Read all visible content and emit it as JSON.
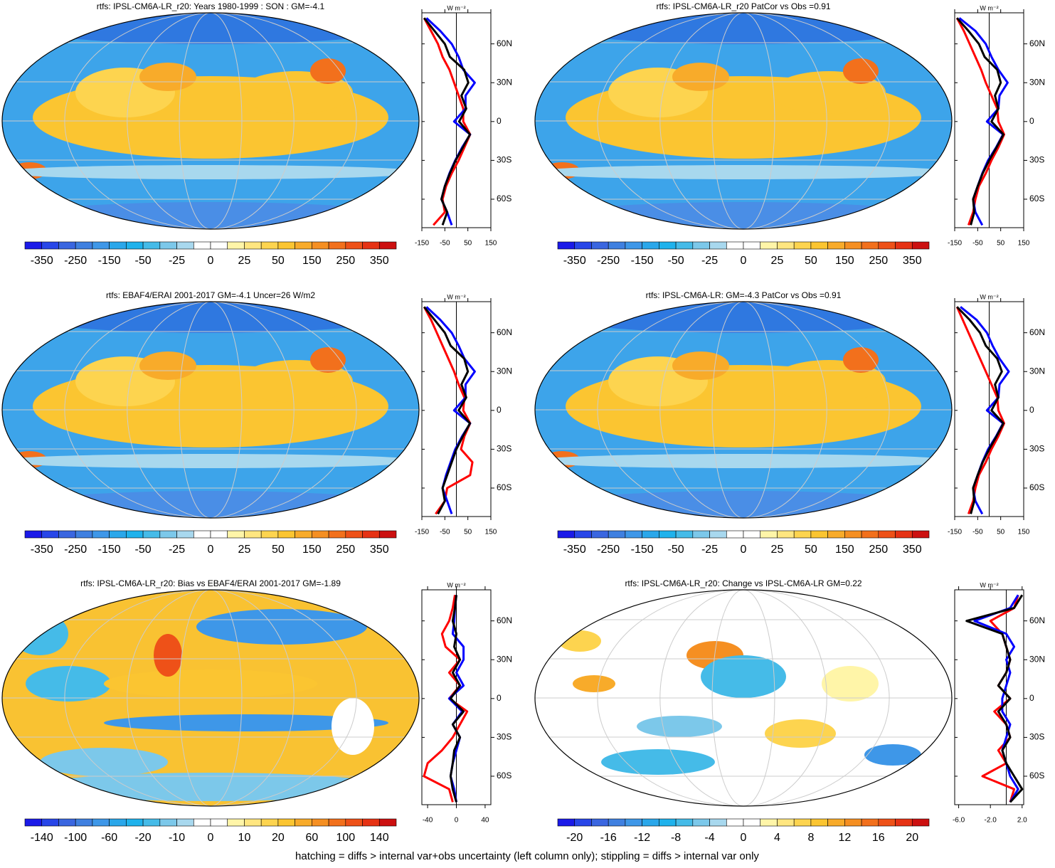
{
  "palette": [
    "#1b1ae8",
    "#2846e8",
    "#3a66e0",
    "#3f80e0",
    "#3e97e8",
    "#2aa7ea",
    "#1fb2ec",
    "#45bbe8",
    "#7cc8ea",
    "#a8d8ee",
    "#ffffff",
    "#ffffff",
    "#fff5a8",
    "#ffe680",
    "#fdd44f",
    "#fbc531",
    "#f8ab2a",
    "#f58f22",
    "#f2701c",
    "#ee5118",
    "#e63214",
    "#cc1010"
  ],
  "footnote": "hatching = diffs > internal var+obs uncertainty (left column only); stippling = diffs > internal var only",
  "chart_data": [
    {
      "type": "map",
      "title": "rtfs: IPSL-CM6A-LR_r20: Years 1980-1999 : SON : GM=-4.1",
      "colorbar_labels": [
        -350,
        -250,
        -150,
        -50,
        -25,
        0,
        25,
        50,
        150,
        250,
        350
      ],
      "units": "W m⁻²",
      "xlim": [
        -150,
        150
      ],
      "xticks": [
        -150,
        -50,
        50,
        150
      ],
      "ylim": [
        -82,
        84
      ],
      "yticks": [
        {
          "value": 60,
          "label": "60N"
        },
        {
          "value": 30,
          "label": "30N"
        },
        0,
        {
          "value": -30,
          "label": "30S"
        },
        {
          "value": -60,
          "label": "60S"
        }
      ],
      "y": [
        -80,
        -70,
        -60,
        -50,
        -40,
        -30,
        -20,
        -10,
        0,
        10,
        20,
        30,
        40,
        50,
        60,
        70,
        80
      ],
      "series": [
        {
          "color": "#ff0000",
          "values": [
            -100,
            -50,
            -60,
            -45,
            -20,
            10,
            35,
            60,
            30,
            30,
            10,
            -10,
            -30,
            -60,
            -80,
            -110,
            -140
          ]
        },
        {
          "color": "#0000ff",
          "values": [
            -20,
            -40,
            -65,
            -50,
            -30,
            -5,
            25,
            60,
            -10,
            40,
            40,
            80,
            30,
            10,
            -20,
            -70,
            -130
          ]
        },
        {
          "color": "#000000",
          "values": [
            -60,
            -40,
            -65,
            -50,
            -28,
            -3,
            28,
            59,
            12,
            43,
            22,
            52,
            34,
            -28,
            -50,
            -95,
            -140
          ]
        }
      ]
    },
    {
      "type": "map",
      "title": "rtfs: IPSL-CM6A-LR_r20 PatCor vs Obs =0.91",
      "colorbar_labels": [
        -350,
        -250,
        -150,
        -50,
        -25,
        0,
        25,
        50,
        150,
        250,
        350
      ],
      "units": "W m⁻²",
      "xlim": [
        -150,
        150
      ],
      "xticks": [
        -150,
        -50,
        50,
        150
      ],
      "ylim": [
        -82,
        84
      ],
      "yticks": [
        {
          "value": 60,
          "label": "60N"
        },
        {
          "value": 30,
          "label": "30N"
        },
        0,
        {
          "value": -30,
          "label": "30S"
        },
        {
          "value": -60,
          "label": "60S"
        }
      ],
      "y": [
        -80,
        -70,
        -60,
        -50,
        -40,
        -30,
        -20,
        -10,
        0,
        10,
        20,
        30,
        40,
        50,
        60,
        70,
        80
      ],
      "series": [
        {
          "color": "#ff0000",
          "values": [
            -90,
            -70,
            -60,
            -45,
            -15,
            10,
            40,
            65,
            40,
            35,
            10,
            -15,
            -35,
            -60,
            -85,
            -110,
            -140
          ]
        },
        {
          "color": "#0000ff",
          "values": [
            -30,
            -60,
            -70,
            -50,
            -30,
            -5,
            30,
            60,
            -10,
            40,
            45,
            80,
            40,
            10,
            -15,
            -60,
            -130
          ]
        },
        {
          "color": "#000000",
          "values": [
            -80,
            -65,
            -70,
            -50,
            -28,
            0,
            32,
            62,
            10,
            40,
            25,
            50,
            35,
            -20,
            -45,
            -90,
            -140
          ]
        }
      ]
    },
    {
      "type": "map",
      "title": "rtfs: EBAF4/ERAI 2001-2017 GM=-4.1 Uncer=26 W/m2",
      "colorbar_labels": [
        -350,
        -250,
        -150,
        -50,
        -25,
        0,
        25,
        50,
        150,
        250,
        350
      ],
      "units": "W m⁻²",
      "xlim": [
        -150,
        150
      ],
      "xticks": [
        -150,
        -50,
        50,
        150
      ],
      "ylim": [
        -82,
        84
      ],
      "yticks": [
        {
          "value": 60,
          "label": "60N"
        },
        {
          "value": 30,
          "label": "30N"
        },
        0,
        {
          "value": -30,
          "label": "30S"
        },
        {
          "value": -60,
          "label": "60S"
        }
      ],
      "y": [
        -80,
        -70,
        -60,
        -50,
        -40,
        -30,
        -20,
        -10,
        0,
        10,
        20,
        30,
        40,
        50,
        60,
        70,
        80
      ],
      "series": [
        {
          "color": "#ff0000",
          "values": [
            -90,
            -50,
            -40,
            60,
            70,
            20,
            35,
            60,
            30,
            35,
            10,
            -10,
            -35,
            -60,
            -85,
            -110,
            -140
          ]
        },
        {
          "color": "#0000ff",
          "values": [
            -20,
            -40,
            -60,
            -45,
            -25,
            -5,
            25,
            60,
            -10,
            40,
            40,
            80,
            35,
            10,
            -20,
            -70,
            -130
          ]
        },
        {
          "color": "#000000",
          "values": [
            -80,
            -50,
            -60,
            -40,
            -20,
            0,
            28,
            59,
            10,
            43,
            22,
            50,
            34,
            -25,
            -50,
            -95,
            -140
          ]
        }
      ]
    },
    {
      "type": "map",
      "title": "rtfs: IPSL-CM6A-LR: GM=-4.3 PatCor vs Obs =0.91",
      "colorbar_labels": [
        -350,
        -250,
        -150,
        -50,
        -25,
        0,
        25,
        50,
        150,
        250,
        350
      ],
      "units": "W m⁻²",
      "xlim": [
        -150,
        150
      ],
      "xticks": [
        -150,
        -50,
        50,
        150
      ],
      "ylim": [
        -82,
        84
      ],
      "yticks": [
        {
          "value": 60,
          "label": "60N"
        },
        {
          "value": 30,
          "label": "30N"
        },
        0,
        {
          "value": -30,
          "label": "30S"
        },
        {
          "value": -60,
          "label": "60S"
        }
      ],
      "y": [
        -80,
        -70,
        -60,
        -50,
        -40,
        -30,
        -20,
        -10,
        0,
        10,
        20,
        30,
        40,
        50,
        60,
        70,
        80
      ],
      "series": [
        {
          "color": "#ff0000",
          "values": [
            -90,
            -70,
            -60,
            -45,
            -15,
            10,
            40,
            65,
            40,
            35,
            10,
            -15,
            -40,
            -65,
            -90,
            -115,
            -140
          ]
        },
        {
          "color": "#0000ff",
          "values": [
            -30,
            -60,
            -70,
            -50,
            -30,
            -5,
            30,
            60,
            -10,
            40,
            45,
            85,
            45,
            15,
            -10,
            -55,
            -125
          ]
        },
        {
          "color": "#000000",
          "values": [
            -80,
            -65,
            -70,
            -50,
            -28,
            0,
            32,
            62,
            10,
            40,
            25,
            55,
            35,
            -15,
            -40,
            -85,
            -140
          ]
        }
      ]
    },
    {
      "type": "map",
      "title": "rtfs: IPSL-CM6A-LR_r20: Bias vs EBAF4/ERAI 2001-2017  GM=-1.89",
      "colorbar_labels": [
        -140,
        -100,
        -60,
        -20,
        -10,
        0,
        10,
        20,
        60,
        100,
        140
      ],
      "units": "W m⁻²",
      "xlim": [
        -48,
        48
      ],
      "xticks": [
        -40,
        0,
        40
      ],
      "ylim": [
        -82,
        84
      ],
      "yticks": [
        {
          "value": 60,
          "label": "60N"
        },
        {
          "value": 30,
          "label": "30N"
        },
        0,
        {
          "value": -30,
          "label": "30S"
        },
        {
          "value": -60,
          "label": "60S"
        }
      ],
      "y": [
        -80,
        -70,
        -60,
        -50,
        -40,
        -30,
        -20,
        -10,
        0,
        10,
        20,
        30,
        40,
        50,
        60,
        70,
        80
      ],
      "series": [
        {
          "color": "#ff0000",
          "values": [
            -5,
            -10,
            -45,
            -40,
            -20,
            -5,
            5,
            15,
            -10,
            5,
            -10,
            5,
            -15,
            -20,
            -10,
            -5,
            -2
          ]
        },
        {
          "color": "#0000ff",
          "values": [
            0,
            -3,
            -8,
            -5,
            0,
            5,
            -5,
            8,
            -10,
            10,
            0,
            10,
            10,
            -5,
            -3,
            -2,
            0
          ]
        },
        {
          "color": "#000000",
          "values": [
            0,
            -5,
            -8,
            -5,
            -3,
            5,
            -5,
            10,
            -8,
            5,
            -5,
            5,
            -3,
            0,
            -5,
            -2,
            0
          ]
        }
      ]
    },
    {
      "type": "map",
      "title": "rtfs: IPSL-CM6A-LR_r20: Change vs IPSL-CM6A-LR GM=0.22",
      "colorbar_labels": [
        -20,
        -16,
        -12,
        -8,
        -4,
        0,
        4,
        8,
        12,
        16,
        20
      ],
      "units": "W m⁻²",
      "xlim": [
        -6.5,
        2.2
      ],
      "xticks": [
        {
          "value": -6,
          "label": "-6.0"
        },
        {
          "value": -2,
          "label": "-2.0"
        },
        {
          "value": 2,
          "label": "2.0"
        }
      ],
      "ylim": [
        -82,
        84
      ],
      "yticks": [
        {
          "value": 60,
          "label": "60N"
        },
        {
          "value": 30,
          "label": "30N"
        },
        0,
        {
          "value": -30,
          "label": "30S"
        },
        {
          "value": -60,
          "label": "60S"
        }
      ],
      "y": [
        -80,
        -70,
        -60,
        -50,
        -40,
        -30,
        -20,
        -10,
        0,
        10,
        20,
        30,
        40,
        50,
        60,
        70,
        80
      ],
      "series": [
        {
          "color": "#ff0000",
          "values": [
            0.5,
            1,
            -3,
            0,
            -1,
            0.5,
            0,
            -1.5,
            0.5,
            -1,
            0,
            0.5,
            0,
            -0.5,
            -2,
            1,
            1.5
          ]
        },
        {
          "color": "#0000ff",
          "values": [
            0.5,
            1.5,
            0.5,
            0,
            -0.5,
            0,
            0.5,
            -0.5,
            -0.5,
            0,
            0.5,
            0,
            1,
            0,
            -4,
            0.5,
            1.5
          ]
        },
        {
          "color": "#000000",
          "values": [
            0.5,
            2,
            1,
            0,
            -0.5,
            0.5,
            0,
            -1,
            0.5,
            -1,
            0,
            0.5,
            0,
            -0.5,
            -5,
            1,
            2
          ]
        }
      ]
    }
  ]
}
